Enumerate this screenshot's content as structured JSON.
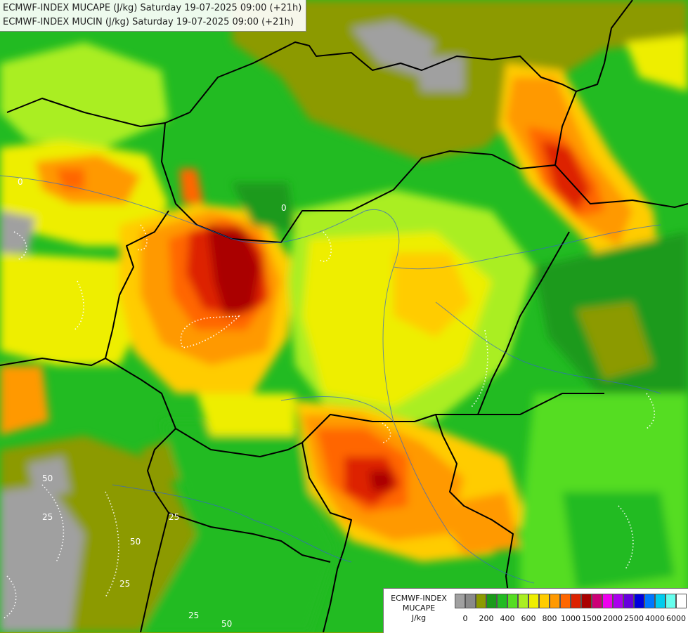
{
  "header": {
    "line1": "ECMWF-INDEX MUCAPE (J/kg) Saturday 19-07-2025 09:00 (+21h)",
    "line2": "ECMWF-INDEX MUCIN (J/kg) Saturday 19-07-2025 09:00 (+21h)"
  },
  "legend": {
    "line1": "ECMWF-INDEX",
    "line2": "MUCAPE",
    "line3": "J/kg",
    "colors": [
      "#a0a0a0",
      "#8a8a8a",
      "#8c9a00",
      "#1a9a1a",
      "#22bb22",
      "#55dd22",
      "#aaee22",
      "#eeee00",
      "#ffcc00",
      "#ff9900",
      "#ff6600",
      "#dd2200",
      "#aa0000",
      "#cc0077",
      "#ee00ee",
      "#aa00ee",
      "#6600dd",
      "#0000dd",
      "#0077ff",
      "#00ccee",
      "#66ffee",
      "#ffffff"
    ],
    "ticks": [
      "0",
      "200",
      "400",
      "600",
      "800",
      "1000",
      "1500",
      "2000",
      "2500",
      "4000",
      "6000"
    ]
  },
  "map": {
    "field_colors": {
      "gray": "#a0a0a0",
      "olive": "#8c9a00",
      "dark_green": "#1a9a1a",
      "green": "#22bb22",
      "light_green": "#55dd22",
      "yellow_green": "#aaee22",
      "yellow": "#eeee00",
      "gold": "#ffcc00",
      "orange": "#ff9900",
      "dark_orange": "#ff6600",
      "red": "#dd2200",
      "dark_red": "#aa0000"
    },
    "cin_contour_labels": [
      "0",
      "0",
      "50",
      "25",
      "25",
      "50",
      "25",
      "25",
      "50"
    ]
  }
}
